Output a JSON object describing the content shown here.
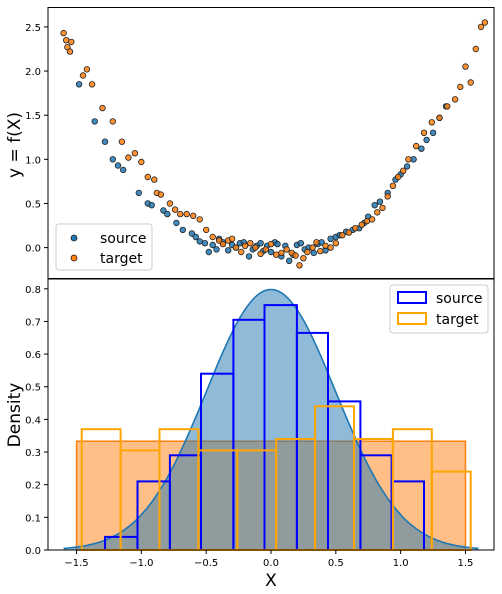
{
  "chart_data": [
    {
      "type": "scatter",
      "ylabel": "y = f(X)",
      "xlim": [
        -1.72,
        1.72
      ],
      "ylim": [
        -0.35,
        2.72
      ],
      "yticks": [
        0.0,
        0.5,
        1.0,
        1.5,
        2.0,
        2.5
      ],
      "ytick_labels": [
        "0.0",
        "0.5",
        "1.0",
        "1.5",
        "2.0",
        "2.5"
      ],
      "legend_position": "lower-left",
      "grid": false,
      "series": [
        {
          "name": "source",
          "color": "#1f77b4",
          "points": [
            [
              -1.48,
              1.85
            ],
            [
              -1.36,
              1.43
            ],
            [
              -1.28,
              1.2
            ],
            [
              -1.22,
              1.0
            ],
            [
              -1.18,
              0.93
            ],
            [
              -1.14,
              0.88
            ],
            [
              -1.02,
              0.62
            ],
            [
              -0.95,
              0.5
            ],
            [
              -0.92,
              0.48
            ],
            [
              -0.83,
              0.42
            ],
            [
              -0.8,
              0.38
            ],
            [
              -0.73,
              0.28
            ],
            [
              -0.68,
              0.2
            ],
            [
              -0.61,
              0.16
            ],
            [
              -0.58,
              0.12
            ],
            [
              -0.55,
              0.07
            ],
            [
              -0.51,
              0.05
            ],
            [
              -0.48,
              -0.05
            ],
            [
              -0.45,
              0.03
            ],
            [
              -0.42,
              -0.02
            ],
            [
              -0.4,
              0.1
            ],
            [
              -0.37,
              0.06
            ],
            [
              -0.33,
              -0.03
            ],
            [
              -0.3,
              0.03
            ],
            [
              -0.27,
              0.0
            ],
            [
              -0.24,
              0.05
            ],
            [
              -0.21,
              0.06
            ],
            [
              -0.17,
              -0.1
            ],
            [
              -0.14,
              -0.02
            ],
            [
              -0.11,
              0.02
            ],
            [
              -0.08,
              0.05
            ],
            [
              -0.06,
              -0.04
            ],
            [
              -0.03,
              0.02
            ],
            [
              0.0,
              -0.05
            ],
            [
              0.03,
              0.06
            ],
            [
              0.05,
              0.04
            ],
            [
              0.08,
              -0.1
            ],
            [
              0.11,
              0.02
            ],
            [
              0.14,
              -0.15
            ],
            [
              0.17,
              -0.08
            ],
            [
              0.2,
              0.03
            ],
            [
              0.23,
              0.05
            ],
            [
              0.26,
              -0.02
            ],
            [
              0.29,
              0.0
            ],
            [
              0.33,
              -0.06
            ],
            [
              0.36,
              0.04
            ],
            [
              0.39,
              0.06
            ],
            [
              0.42,
              -0.03
            ],
            [
              0.46,
              0.1
            ],
            [
              0.5,
              0.12
            ],
            [
              0.53,
              0.14
            ],
            [
              0.58,
              0.18
            ],
            [
              0.63,
              0.2
            ],
            [
              0.68,
              0.22
            ],
            [
              0.72,
              0.28
            ],
            [
              0.75,
              0.35
            ],
            [
              0.8,
              0.48
            ],
            [
              0.84,
              0.52
            ],
            [
              0.9,
              0.62
            ],
            [
              0.96,
              0.77
            ],
            [
              1.0,
              0.83
            ],
            [
              1.05,
              0.92
            ],
            [
              1.1,
              1.0
            ],
            [
              1.16,
              1.12
            ],
            [
              1.2,
              1.22
            ],
            [
              1.25,
              1.3
            ],
            [
              1.3,
              1.47
            ],
            [
              1.35,
              1.6
            ]
          ]
        },
        {
          "name": "target",
          "color": "#ff7f0e",
          "points": [
            [
              -1.6,
              2.43
            ],
            [
              -1.58,
              2.35
            ],
            [
              -1.57,
              2.27
            ],
            [
              -1.55,
              2.22
            ],
            [
              -1.54,
              2.33
            ],
            [
              -1.45,
              1.95
            ],
            [
              -1.42,
              2.02
            ],
            [
              -1.38,
              1.85
            ],
            [
              -1.3,
              1.58
            ],
            [
              -1.22,
              1.43
            ],
            [
              -1.15,
              1.2
            ],
            [
              -1.1,
              1.02
            ],
            [
              -1.05,
              1.07
            ],
            [
              -1.0,
              0.97
            ],
            [
              -0.95,
              0.8
            ],
            [
              -0.9,
              0.77
            ],
            [
              -0.88,
              0.62
            ],
            [
              -0.85,
              0.6
            ],
            [
              -0.78,
              0.5
            ],
            [
              -0.74,
              0.43
            ],
            [
              -0.7,
              0.38
            ],
            [
              -0.65,
              0.38
            ],
            [
              -0.6,
              0.36
            ],
            [
              -0.55,
              0.32
            ],
            [
              -0.5,
              0.2
            ],
            [
              -0.45,
              0.12
            ],
            [
              -0.4,
              0.08
            ],
            [
              -0.37,
              0.04
            ],
            [
              -0.33,
              0.08
            ],
            [
              -0.3,
              0.1
            ],
            [
              -0.27,
              0.0
            ],
            [
              -0.23,
              -0.05
            ],
            [
              -0.2,
              0.02
            ],
            [
              -0.16,
              0.05
            ],
            [
              -0.12,
              0.0
            ],
            [
              -0.08,
              -0.07
            ],
            [
              -0.04,
              -0.02
            ],
            [
              0.0,
              0.04
            ],
            [
              0.04,
              -0.08
            ],
            [
              0.08,
              -0.06
            ],
            [
              0.12,
              -0.02
            ],
            [
              0.16,
              -0.06
            ],
            [
              0.19,
              -0.09
            ],
            [
              0.22,
              -0.2
            ],
            [
              0.25,
              -0.12
            ],
            [
              0.28,
              -0.05
            ],
            [
              0.32,
              0.0
            ],
            [
              0.35,
              0.06
            ],
            [
              0.38,
              -0.04
            ],
            [
              0.42,
              0.02
            ],
            [
              0.46,
              0.0
            ],
            [
              0.5,
              0.05
            ],
            [
              0.55,
              0.14
            ],
            [
              0.6,
              0.17
            ],
            [
              0.65,
              0.22
            ],
            [
              0.7,
              0.26
            ],
            [
              0.74,
              0.3
            ],
            [
              0.78,
              0.32
            ],
            [
              0.82,
              0.4
            ],
            [
              0.86,
              0.45
            ],
            [
              0.9,
              0.58
            ],
            [
              0.94,
              0.7
            ],
            [
              0.98,
              0.8
            ],
            [
              1.02,
              0.87
            ],
            [
              1.06,
              1.0
            ],
            [
              1.12,
              1.15
            ],
            [
              1.18,
              1.3
            ],
            [
              1.24,
              1.42
            ],
            [
              1.3,
              1.47
            ],
            [
              1.36,
              1.6
            ],
            [
              1.42,
              1.68
            ],
            [
              1.46,
              1.82
            ],
            [
              1.5,
              2.05
            ],
            [
              1.54,
              1.87
            ],
            [
              1.58,
              2.25
            ],
            [
              1.62,
              2.5
            ],
            [
              1.65,
              2.55
            ]
          ]
        }
      ]
    },
    {
      "type": "histogram",
      "xlabel": "X",
      "ylabel": "Density",
      "xlim": [
        -1.72,
        1.72
      ],
      "ylim": [
        0,
        0.83
      ],
      "xticks": [
        -1.5,
        -1.0,
        -0.5,
        0.0,
        0.5,
        1.0,
        1.5
      ],
      "xtick_labels": [
        "−1.5",
        "−1.0",
        "−0.5",
        "0.0",
        "0.5",
        "1.0",
        "1.5"
      ],
      "yticks": [
        0.0,
        0.1,
        0.2,
        0.3,
        0.4,
        0.5,
        0.6,
        0.7,
        0.8
      ],
      "ytick_labels": [
        "0.0",
        "0.1",
        "0.2",
        "0.3",
        "0.4",
        "0.5",
        "0.6",
        "0.7",
        "0.8"
      ],
      "legend_position": "top-right",
      "grid": false,
      "density_curve": {
        "mean": 0.0,
        "std": 0.5,
        "x_range": [
          -1.6,
          1.6
        ],
        "fill_color": "#1f77b4",
        "line_color": "#1f77b4"
      },
      "target_fill": {
        "x_range": [
          -1.5,
          1.5
        ],
        "value": 0.333,
        "fill_color": "#ff7f0e"
      },
      "series": [
        {
          "name": "source",
          "color": "#0000ff",
          "edges": [
            -1.28,
            -1.03,
            -0.78,
            -0.54,
            -0.29,
            -0.05,
            0.2,
            0.44,
            0.69,
            0.93,
            1.18
          ],
          "values": [
            0.04,
            0.21,
            0.29,
            0.54,
            0.705,
            0.75,
            0.665,
            0.455,
            0.29,
            0.21
          ]
        },
        {
          "name": "target",
          "color": "#ffa500",
          "edges": [
            -1.46,
            -1.16,
            -0.86,
            -0.56,
            -0.26,
            0.04,
            0.34,
            0.64,
            0.94,
            1.24,
            1.54
          ],
          "values": [
            0.37,
            0.305,
            0.37,
            0.305,
            0.305,
            0.34,
            0.44,
            0.34,
            0.37,
            0.24
          ]
        }
      ]
    }
  ]
}
